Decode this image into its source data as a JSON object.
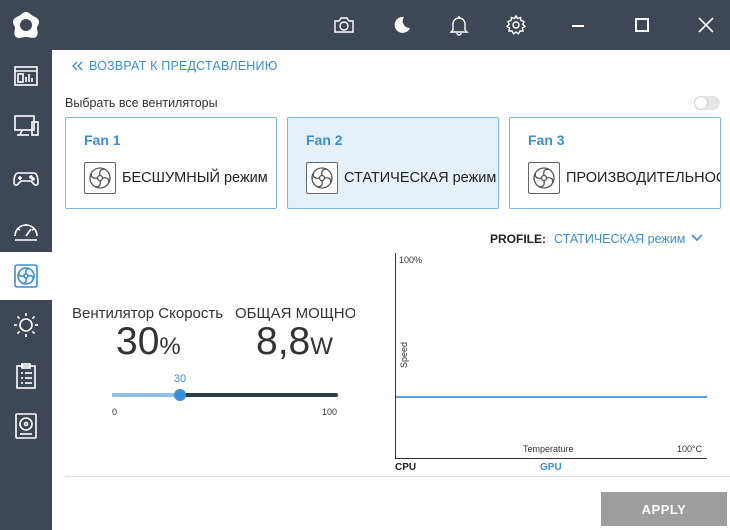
{
  "header": {
    "icons": [
      "camera-icon",
      "moon-icon",
      "bell-icon",
      "gear-icon",
      "minimize-icon",
      "maximize-icon",
      "close-icon"
    ]
  },
  "sidebar": {
    "items": [
      {
        "icon": "dashboard-icon"
      },
      {
        "icon": "monitor-icon"
      },
      {
        "icon": "gamepad-icon"
      },
      {
        "icon": "gauge-icon"
      },
      {
        "icon": "fan-icon",
        "active": true
      },
      {
        "icon": "brightness-icon"
      },
      {
        "icon": "clipboard-icon"
      },
      {
        "icon": "storage-icon"
      }
    ]
  },
  "nav": {
    "back_label": "ВОЗВРАТ К ПРЕДСТАВЛЕНИЮ"
  },
  "select_all": {
    "label": "Выбрать все вентиляторы",
    "enabled": false
  },
  "fans": [
    {
      "title": "Fan 1",
      "mode": "БЕСШУМНЫЙ режим"
    },
    {
      "title": "Fan 2",
      "mode": "СТАТИЧЕСКАЯ режим"
    },
    {
      "title": "Fan 3",
      "mode": "ПРОИЗВОДИТЕЛЬНОСТЬ"
    }
  ],
  "profile": {
    "label": "PROFILE:",
    "value": "СТАТИЧЕСКАЯ режим"
  },
  "stats": {
    "speed_label": "Вентилятор Скорость",
    "speed_value": "30",
    "speed_unit": "%",
    "power_label": "ОБЩАЯ МОЩНОСТЬ",
    "power_value": "8,8",
    "power_unit": "W"
  },
  "slider": {
    "value_label": "30",
    "value": 30,
    "min": "0",
    "max": "100"
  },
  "graph": {
    "top_label": "100%",
    "y_label": "Speed",
    "x_label": "Temperature",
    "x_max_label": "100°C",
    "tabs": [
      "CPU",
      "GPU"
    ],
    "line_level_percent": 30
  },
  "actions": {
    "apply": "APPLY"
  },
  "colors": {
    "sidebar_bg": "#3e4756",
    "accent": "#3b8fd6",
    "apply_bg": "#9e9e9e"
  }
}
